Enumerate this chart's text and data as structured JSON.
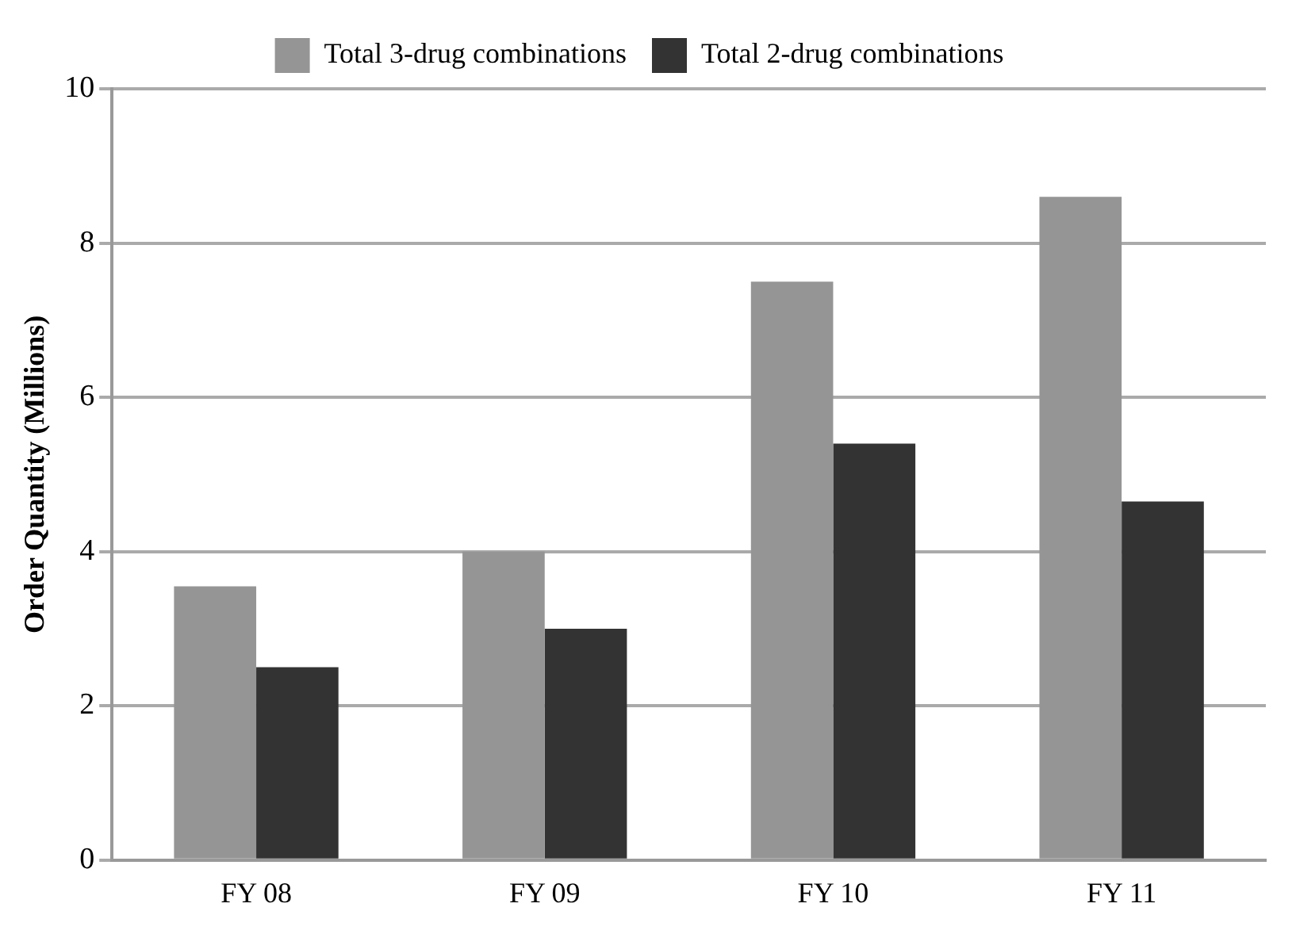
{
  "chart_data": {
    "type": "bar",
    "ylabel": "Order Quantity (Millions)",
    "categories": [
      "FY 08",
      "FY 09",
      "FY 10",
      "FY 11"
    ],
    "series": [
      {
        "name": "Total 3-drug combinations",
        "color": "#959595",
        "values": [
          3.55,
          4.0,
          7.5,
          8.6
        ]
      },
      {
        "name": "Total 2-drug combinations",
        "color": "#333333",
        "values": [
          2.5,
          3.0,
          5.4,
          4.65
        ]
      }
    ],
    "ylim": [
      0,
      10
    ],
    "yticks": [
      0,
      2,
      4,
      6,
      8,
      10
    ],
    "grid": "y",
    "legend": "top"
  }
}
